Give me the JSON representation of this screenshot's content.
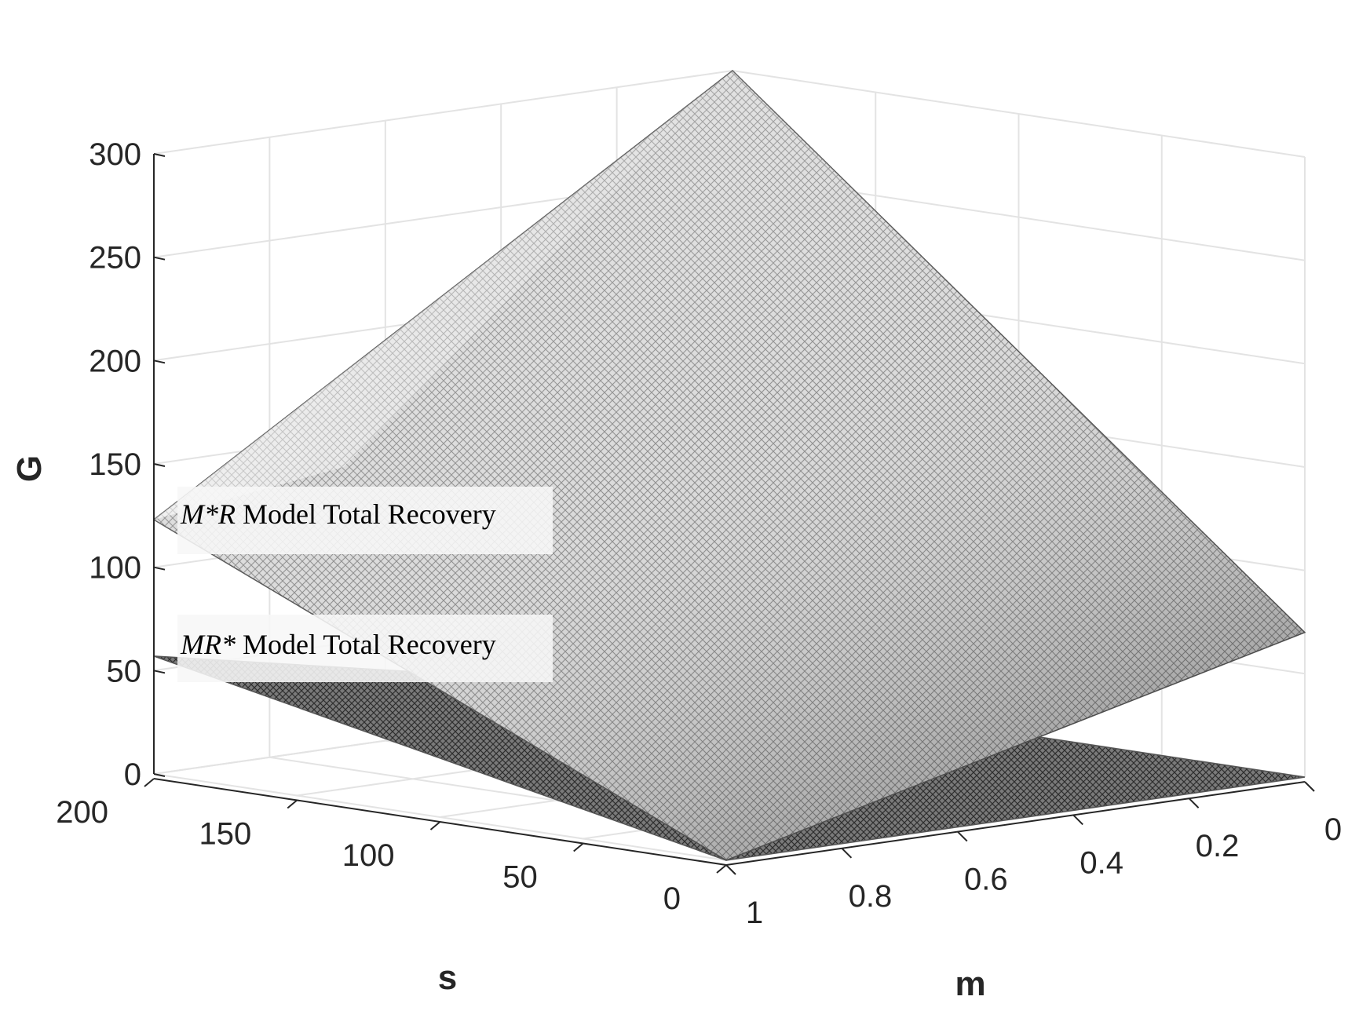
{
  "chart_data": {
    "type": "surface3d",
    "axes": {
      "x": {
        "label": "s",
        "range": [
          0,
          200
        ],
        "ticks": [
          0,
          50,
          100,
          150,
          200
        ]
      },
      "y": {
        "label": "m",
        "range": [
          0,
          1
        ],
        "ticks": [
          0,
          0.2,
          0.4,
          0.6,
          0.8,
          1
        ]
      },
      "z": {
        "label": "G",
        "range": [
          0,
          300
        ],
        "ticks": [
          0,
          50,
          100,
          150,
          200,
          250,
          300
        ]
      }
    },
    "grid": true,
    "surfaces": [
      {
        "id": "upper",
        "corners": [
          {
            "s": 0,
            "m": 1,
            "G": 0
          },
          {
            "s": 200,
            "m": 1,
            "G": 123
          },
          {
            "s": 0,
            "m": 0,
            "G": 70
          },
          {
            "s": 200,
            "m": 0,
            "G": 300
          }
        ]
      },
      {
        "id": "lower",
        "corners": [
          {
            "s": 0,
            "m": 1,
            "G": 0
          },
          {
            "s": 200,
            "m": 1,
            "G": 57
          },
          {
            "s": 0,
            "m": 0,
            "G": 0
          },
          {
            "s": 200,
            "m": 0,
            "G": 0
          }
        ]
      }
    ],
    "annotations": [
      {
        "italic": "M*R",
        "text": " Model Total Recovery"
      },
      {
        "italic": "MR*",
        "text": " Model Total Recovery"
      }
    ],
    "colors": {
      "upper_surface": "#bdbdbd",
      "lower_surface": "#6e6e6e",
      "box_grid": "#e3e3e3",
      "axis": "#262626",
      "annotation_bg": "#f7f7f7"
    }
  }
}
